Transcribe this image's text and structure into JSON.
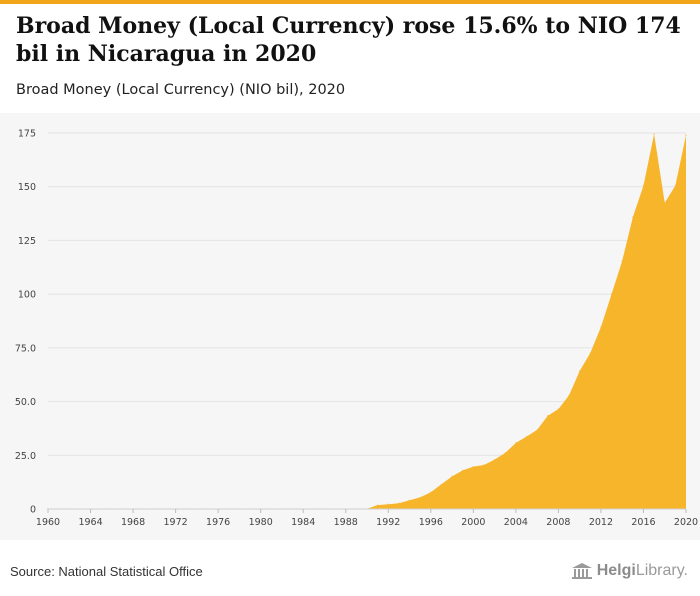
{
  "title": "Broad Money (Local Currency) rose 15.6% to NIO 174 bil in Nicaragua in 2020",
  "subtitle": "Broad Money (Local Currency) (NIO bil), 2020",
  "source": "Source: National Statistical Office",
  "logo": {
    "brand_bold": "Helgi",
    "brand_rest": "Library."
  },
  "colors": {
    "fill": "#f7b52c",
    "accent": "#f2a51a",
    "grid": "#e3e3e3",
    "background": "#f6f6f6"
  },
  "chart_data": {
    "type": "area",
    "title": "Broad Money (Local Currency) (NIO bil), 2020",
    "xlabel": "",
    "ylabel": "",
    "xlim": [
      1960,
      2020
    ],
    "ylim": [
      0,
      175
    ],
    "grid": true,
    "yticks": [
      {
        "value": 0,
        "label": "0"
      },
      {
        "value": 25,
        "label": "25.0"
      },
      {
        "value": 50,
        "label": "50.0"
      },
      {
        "value": 75,
        "label": "75.0"
      },
      {
        "value": 100,
        "label": "100"
      },
      {
        "value": 125,
        "label": "125"
      },
      {
        "value": 150,
        "label": "150"
      },
      {
        "value": 175,
        "label": "175"
      }
    ],
    "xticks": [
      "1960",
      "1964",
      "1968",
      "1972",
      "1976",
      "1980",
      "1984",
      "1988",
      "1992",
      "1996",
      "2000",
      "2004",
      "2008",
      "2012",
      "2016",
      "2020"
    ],
    "x": [
      1960,
      1961,
      1962,
      1963,
      1964,
      1965,
      1966,
      1967,
      1968,
      1969,
      1970,
      1971,
      1972,
      1973,
      1974,
      1975,
      1976,
      1977,
      1978,
      1979,
      1980,
      1981,
      1982,
      1983,
      1984,
      1985,
      1986,
      1987,
      1988,
      1989,
      1990,
      1991,
      1992,
      1993,
      1994,
      1995,
      1996,
      1997,
      1998,
      1999,
      2000,
      2001,
      2002,
      2003,
      2004,
      2005,
      2006,
      2007,
      2008,
      2009,
      2010,
      2011,
      2012,
      2013,
      2014,
      2015,
      2016,
      2017,
      2018,
      2019,
      2020
    ],
    "series": [
      {
        "values": [
          0,
          0,
          0,
          0,
          0,
          0,
          0,
          0,
          0,
          0,
          0,
          0,
          0,
          0,
          0,
          0,
          0,
          0,
          0,
          0,
          0,
          0,
          0,
          0,
          0,
          0,
          0,
          0,
          0,
          0,
          0.1,
          1.8,
          2.2,
          2.7,
          4.1,
          5.4,
          7.8,
          11.5,
          15.2,
          18.0,
          19.7,
          20.5,
          23.0,
          26.1,
          30.8,
          33.7,
          36.8,
          43.4,
          46.5,
          52.9,
          64.2,
          72.6,
          84.7,
          100.0,
          115.5,
          135.8,
          150.5,
          174.5,
          142.5,
          150.5,
          174.0
        ]
      }
    ]
  }
}
